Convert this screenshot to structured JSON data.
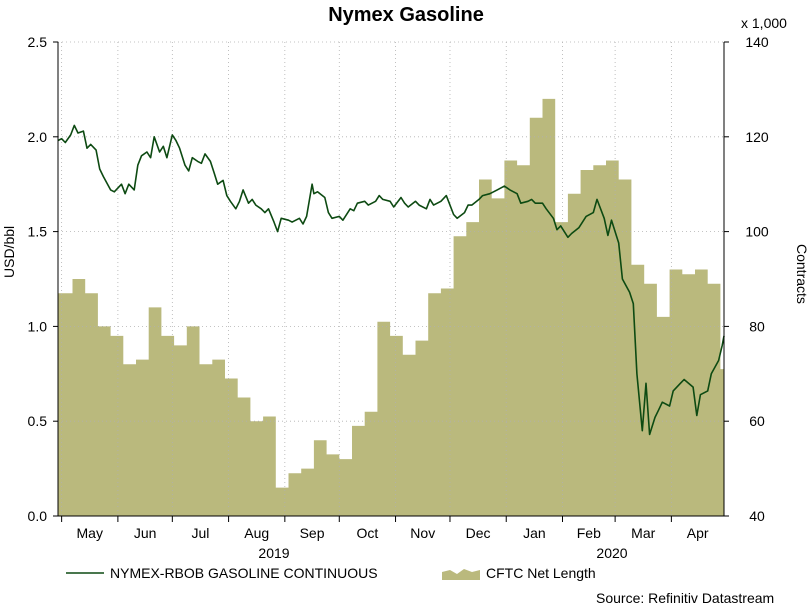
{
  "chart_data": {
    "type": "line+area",
    "title": "Nymex Gasoline",
    "y_left": {
      "label": "USD/bbl",
      "range": [
        0,
        2.5
      ],
      "ticks": [
        "0.0",
        "0.5",
        "1.0",
        "1.5",
        "2.0",
        "2.5"
      ]
    },
    "y_right": {
      "label": "Contracts",
      "multiplier_label": "x 1,000",
      "range": [
        40,
        140
      ],
      "ticks": [
        "40",
        "60",
        "80",
        "100",
        "120",
        "140"
      ]
    },
    "x_axis": {
      "months": [
        "May",
        "Jun",
        "Jul",
        "Aug",
        "Sep",
        "Oct",
        "Nov",
        "Dec",
        "Jan",
        "Feb",
        "Mar",
        "Apr"
      ],
      "years": [
        "2019",
        "2020"
      ],
      "range": [
        "2019-04-29",
        "2020-04-30"
      ]
    },
    "grid": true,
    "legend_position": "bottom",
    "series": [
      {
        "name": "NYMEX-RBOB GASOLINE CONTINUOUS",
        "type": "line",
        "axis": "left",
        "color": "#0d4a12",
        "x": [
          "2019-04-29",
          "2019-05-01",
          "2019-05-03",
          "2019-05-06",
          "2019-05-08",
          "2019-05-10",
          "2019-05-13",
          "2019-05-15",
          "2019-05-17",
          "2019-05-20",
          "2019-05-22",
          "2019-05-24",
          "2019-05-28",
          "2019-05-30",
          "2019-06-03",
          "2019-06-05",
          "2019-06-07",
          "2019-06-10",
          "2019-06-12",
          "2019-06-14",
          "2019-06-17",
          "2019-06-19",
          "2019-06-21",
          "2019-06-24",
          "2019-06-26",
          "2019-06-28",
          "2019-07-01",
          "2019-07-03",
          "2019-07-05",
          "2019-07-08",
          "2019-07-10",
          "2019-07-12",
          "2019-07-15",
          "2019-07-17",
          "2019-07-19",
          "2019-07-22",
          "2019-07-24",
          "2019-07-26",
          "2019-07-29",
          "2019-07-31",
          "2019-08-02",
          "2019-08-05",
          "2019-08-07",
          "2019-08-09",
          "2019-08-12",
          "2019-08-14",
          "2019-08-16",
          "2019-08-19",
          "2019-08-21",
          "2019-08-23",
          "2019-08-26",
          "2019-08-28",
          "2019-08-30",
          "2019-09-03",
          "2019-09-05",
          "2019-09-09",
          "2019-09-11",
          "2019-09-13",
          "2019-09-16",
          "2019-09-17",
          "2019-09-19",
          "2019-09-23",
          "2019-09-25",
          "2019-09-27",
          "2019-10-01",
          "2019-10-03",
          "2019-10-07",
          "2019-10-09",
          "2019-10-11",
          "2019-10-15",
          "2019-10-17",
          "2019-10-21",
          "2019-10-23",
          "2019-10-25",
          "2019-10-29",
          "2019-10-31",
          "2019-11-04",
          "2019-11-06",
          "2019-11-08",
          "2019-11-12",
          "2019-11-14",
          "2019-11-18",
          "2019-11-20",
          "2019-11-22",
          "2019-11-26",
          "2019-11-29",
          "2019-12-03",
          "2019-12-05",
          "2019-12-09",
          "2019-12-11",
          "2019-12-13",
          "2019-12-17",
          "2019-12-19",
          "2019-12-23",
          "2019-12-27",
          "2019-12-31",
          "2020-01-03",
          "2020-01-07",
          "2020-01-09",
          "2020-01-13",
          "2020-01-15",
          "2020-01-17",
          "2020-01-21",
          "2020-01-23",
          "2020-01-27",
          "2020-01-29",
          "2020-01-31",
          "2020-02-04",
          "2020-02-06",
          "2020-02-10",
          "2020-02-12",
          "2020-02-14",
          "2020-02-18",
          "2020-02-20",
          "2020-02-24",
          "2020-02-26",
          "2020-02-28",
          "2020-03-03",
          "2020-03-05",
          "2020-03-09",
          "2020-03-11",
          "2020-03-13",
          "2020-03-16",
          "2020-03-18",
          "2020-03-20",
          "2020-03-23",
          "2020-03-25",
          "2020-03-27",
          "2020-03-31",
          "2020-04-02",
          "2020-04-06",
          "2020-04-08",
          "2020-04-13",
          "2020-04-15",
          "2020-04-17",
          "2020-04-21",
          "2020-04-23",
          "2020-04-27",
          "2020-04-29",
          "2020-04-30"
        ],
        "values": [
          1.98,
          1.99,
          1.97,
          2.01,
          2.06,
          2.02,
          2.03,
          1.94,
          1.96,
          1.93,
          1.83,
          1.79,
          1.72,
          1.71,
          1.75,
          1.7,
          1.75,
          1.72,
          1.85,
          1.9,
          1.92,
          1.89,
          2.0,
          1.92,
          1.95,
          1.89,
          2.01,
          1.98,
          1.94,
          1.85,
          1.82,
          1.89,
          1.87,
          1.86,
          1.91,
          1.87,
          1.81,
          1.75,
          1.77,
          1.69,
          1.66,
          1.62,
          1.66,
          1.72,
          1.65,
          1.67,
          1.64,
          1.62,
          1.6,
          1.62,
          1.55,
          1.5,
          1.57,
          1.56,
          1.55,
          1.57,
          1.54,
          1.58,
          1.75,
          1.7,
          1.71,
          1.68,
          1.6,
          1.57,
          1.58,
          1.56,
          1.62,
          1.61,
          1.65,
          1.66,
          1.64,
          1.66,
          1.69,
          1.67,
          1.66,
          1.63,
          1.68,
          1.65,
          1.63,
          1.66,
          1.64,
          1.62,
          1.67,
          1.64,
          1.66,
          1.69,
          1.59,
          1.57,
          1.6,
          1.64,
          1.64,
          1.67,
          1.69,
          1.7,
          1.72,
          1.74,
          1.72,
          1.7,
          1.65,
          1.66,
          1.67,
          1.65,
          1.65,
          1.62,
          1.57,
          1.51,
          1.53,
          1.47,
          1.49,
          1.52,
          1.55,
          1.58,
          1.6,
          1.67,
          1.57,
          1.48,
          1.56,
          1.44,
          1.25,
          1.18,
          1.12,
          0.75,
          0.45,
          0.7,
          0.43,
          0.52,
          0.56,
          0.6,
          0.58,
          0.66,
          0.7,
          0.72,
          0.68,
          0.53,
          0.64,
          0.66,
          0.75,
          0.82,
          0.9,
          0.95
        ]
      },
      {
        "name": "CFTC Net Length",
        "type": "area-step",
        "axis": "right",
        "color": "#bab97d",
        "x": [
          "2019-04-30",
          "2019-05-07",
          "2019-05-14",
          "2019-05-21",
          "2019-05-28",
          "2019-06-04",
          "2019-06-11",
          "2019-06-18",
          "2019-06-25",
          "2019-07-02",
          "2019-07-09",
          "2019-07-16",
          "2019-07-23",
          "2019-07-30",
          "2019-08-06",
          "2019-08-13",
          "2019-08-20",
          "2019-08-27",
          "2019-09-03",
          "2019-09-10",
          "2019-09-17",
          "2019-09-24",
          "2019-10-01",
          "2019-10-08",
          "2019-10-15",
          "2019-10-22",
          "2019-10-29",
          "2019-11-05",
          "2019-11-12",
          "2019-11-19",
          "2019-11-26",
          "2019-12-03",
          "2019-12-10",
          "2019-12-17",
          "2019-12-24",
          "2019-12-31",
          "2020-01-07",
          "2020-01-14",
          "2020-01-21",
          "2020-01-28",
          "2020-02-04",
          "2020-02-11",
          "2020-02-18",
          "2020-02-25",
          "2020-03-03",
          "2020-03-10",
          "2020-03-17",
          "2020-03-24",
          "2020-03-31",
          "2020-04-07",
          "2020-04-14",
          "2020-04-21",
          "2020-04-28"
        ],
        "values": [
          87,
          90,
          87,
          80,
          78,
          72,
          73,
          84,
          78,
          76,
          80,
          72,
          73,
          69,
          65,
          60,
          61,
          46,
          49,
          50,
          56,
          53,
          52,
          59,
          62,
          81,
          78,
          74,
          77,
          87,
          88,
          99,
          102,
          111,
          107,
          115,
          114,
          124,
          128,
          102,
          108,
          113,
          114,
          115,
          111,
          93,
          89,
          82,
          92,
          91,
          92,
          89,
          71
        ]
      }
    ]
  },
  "source": "Source: Refinitiv Datastream"
}
